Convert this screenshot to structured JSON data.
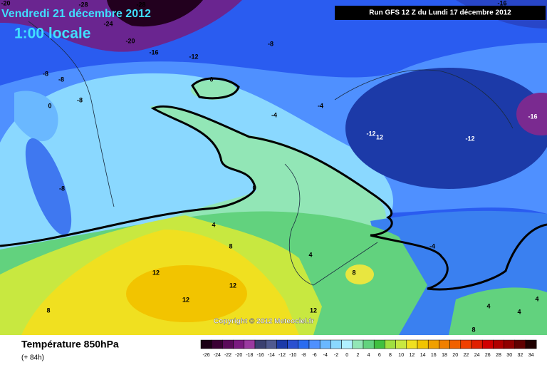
{
  "header": {
    "date": "Vendredi 21 décembre 2012",
    "time": "1:00 locale",
    "run": "Run GFS 12 Z du Lundi 17 décembre 2012"
  },
  "copyright": "Copyright © 2012 Meteociel.fr",
  "footer": {
    "title": "Température 850hPa",
    "lead": "(+ 84h)"
  },
  "contour_labels": [
    -20,
    -28,
    -24,
    -28,
    -16,
    -20,
    -16,
    -12,
    -8,
    -8,
    -8,
    0,
    -8,
    0,
    -4,
    -4,
    -16,
    -12,
    12,
    -12,
    -8,
    0,
    4,
    8,
    4,
    -4,
    8,
    12,
    12,
    12,
    8,
    12,
    4,
    4,
    4,
    8
  ],
  "scale": {
    "ticks": [
      -26,
      -24,
      -22,
      -20,
      -18,
      -16,
      -14,
      -12,
      -10,
      -8,
      -6,
      -4,
      -2,
      0,
      2,
      4,
      6,
      8,
      10,
      12,
      14,
      16,
      18,
      20,
      22,
      24,
      26,
      28,
      30,
      32,
      34
    ]
  }
}
